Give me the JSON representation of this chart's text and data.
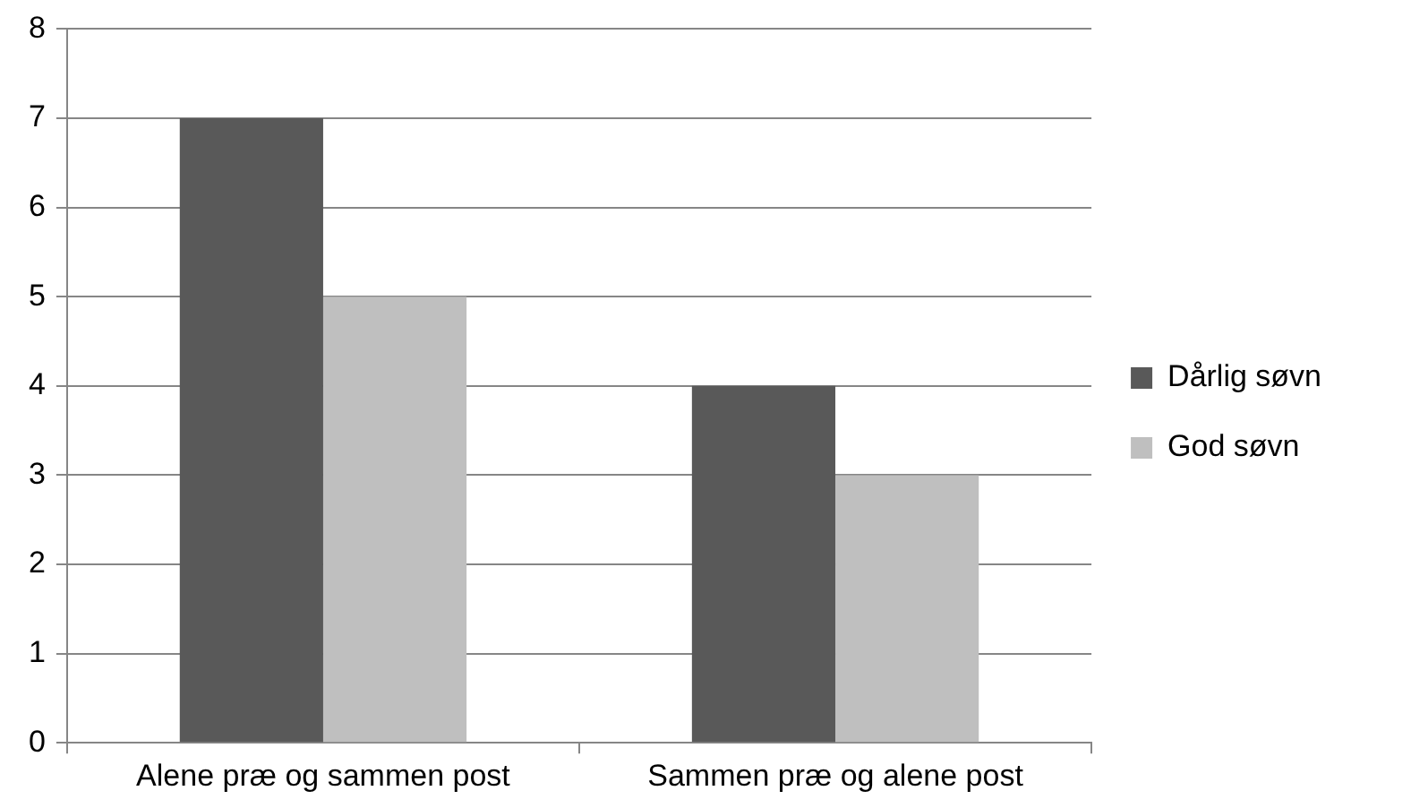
{
  "chart_data": {
    "type": "bar",
    "categories": [
      "Alene præ og sammen post",
      "Sammen præ og alene post"
    ],
    "series": [
      {
        "name": "Dårlig søvn",
        "color": "#595959",
        "values": [
          7,
          4
        ]
      },
      {
        "name": "God søvn",
        "color": "#bfbfbf",
        "values": [
          5,
          3
        ]
      }
    ],
    "ylim": [
      0,
      8
    ],
    "yticks": [
      0,
      1,
      2,
      3,
      4,
      5,
      6,
      7,
      8
    ],
    "grid": "y",
    "legend": "right"
  }
}
